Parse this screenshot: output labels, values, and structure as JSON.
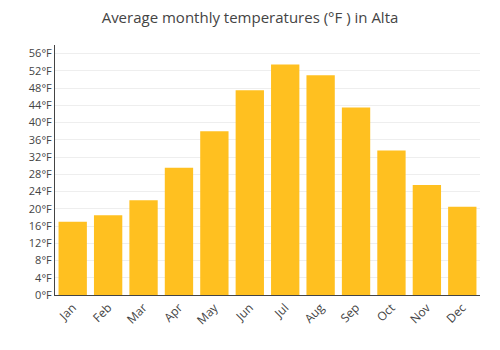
{
  "chart_data": {
    "type": "bar",
    "title": "Average monthly temperatures (°F ) in Alta",
    "categories": [
      "Jan",
      "Feb",
      "Mar",
      "Apr",
      "May",
      "Jun",
      "Jul",
      "Aug",
      "Sep",
      "Oct",
      "Nov",
      "Dec"
    ],
    "values": [
      17,
      18.5,
      22,
      29.5,
      38,
      47.5,
      53.5,
      51,
      43.5,
      33.5,
      25.5,
      20.5
    ],
    "color": "#FFC020",
    "ylim": [
      0,
      58
    ],
    "yticks": [
      {
        "value": 0,
        "label": "0°F"
      },
      {
        "value": 4,
        "label": "4°F"
      },
      {
        "value": 8,
        "label": "8°F"
      },
      {
        "value": 12,
        "label": "12°F"
      },
      {
        "value": 16,
        "label": "16°F"
      },
      {
        "value": 20,
        "label": "20°F"
      },
      {
        "value": 24,
        "label": "24°F"
      },
      {
        "value": 28,
        "label": "28°F"
      },
      {
        "value": 32,
        "label": "32°F"
      },
      {
        "value": 36,
        "label": "36°F"
      },
      {
        "value": 40,
        "label": "40°F"
      },
      {
        "value": 44,
        "label": "44°F"
      },
      {
        "value": 48,
        "label": "48°F"
      },
      {
        "value": 52,
        "label": "52°F"
      },
      {
        "value": 56,
        "label": "56°F"
      }
    ],
    "grid": true
  }
}
